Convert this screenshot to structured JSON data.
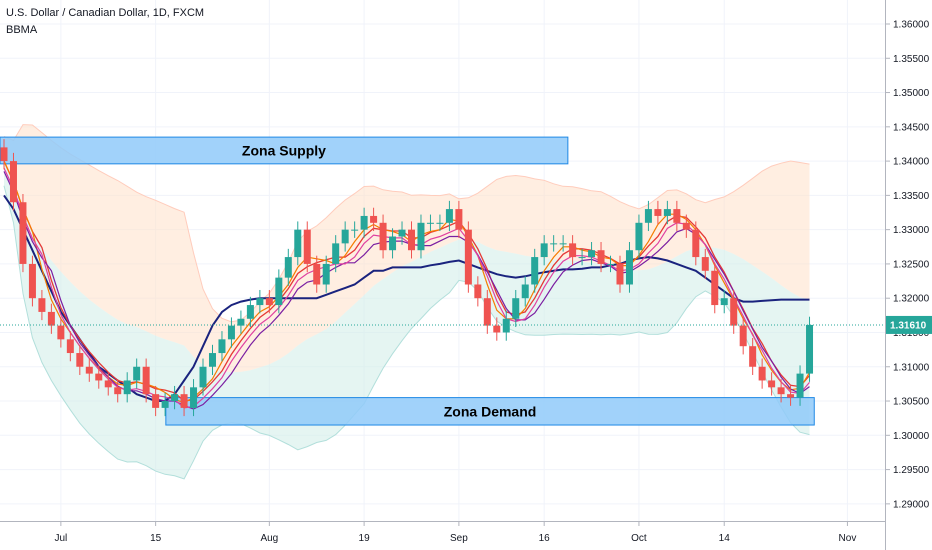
{
  "header": {
    "symbol_line": "U.S. Dollar / Canadian Dollar, 1D, FXCM",
    "indicator": "BBMA"
  },
  "colors": {
    "up": "#26a69a",
    "down": "#ef5350",
    "ma_slow": "#1a237e",
    "ma_red": "#e53935",
    "ma_orange": "#f57c00",
    "ma_purple": "#7b1fa2",
    "ma_pink": "#e040a0",
    "band_upper": "#ffe0c8",
    "band_lower": "#d4efea",
    "zone_fill": "#90caf9",
    "zone_stroke": "#1e88e5",
    "price_label": "#26a69a"
  },
  "chart_data": {
    "type": "candlestick",
    "y_axis": {
      "ticks": [
        "1.29000",
        "1.29500",
        "1.30000",
        "1.30500",
        "1.31000",
        "1.31500",
        "1.32000",
        "1.32500",
        "1.33000",
        "1.33500",
        "1.34000",
        "1.34500",
        "1.35000",
        "1.35500",
        "1.36000"
      ],
      "ylim": [
        1.2875,
        1.3635
      ]
    },
    "x_axis": {
      "ticks": [
        "Jul",
        "15",
        "Aug",
        "19",
        "Sep",
        "16",
        "Oct",
        "14",
        "Nov"
      ],
      "tick_index": [
        6,
        16,
        28,
        38,
        48,
        57,
        67,
        76,
        89
      ]
    },
    "last_price": "1.31610",
    "zones": [
      {
        "label": "Zona Supply",
        "top": 1.3435,
        "bottom": 1.3396,
        "start": 0,
        "end": 59.5
      },
      {
        "label": "Zona Demand",
        "top": 1.3055,
        "bottom": 1.3015,
        "start": 17.5,
        "end": 85.5
      }
    ],
    "closes": [
      1.34,
      1.334,
      1.325,
      1.32,
      1.318,
      1.316,
      1.314,
      1.312,
      1.31,
      1.309,
      1.308,
      1.307,
      1.306,
      1.308,
      1.31,
      1.306,
      1.304,
      1.305,
      1.306,
      1.304,
      1.307,
      1.31,
      1.312,
      1.314,
      1.316,
      1.317,
      1.319,
      1.32,
      1.319,
      1.323,
      1.326,
      1.33,
      1.325,
      1.322,
      1.325,
      1.328,
      1.33,
      1.33,
      1.332,
      1.331,
      1.327,
      1.329,
      1.33,
      1.327,
      1.331,
      1.331,
      1.331,
      1.333,
      1.33,
      1.322,
      1.32,
      1.316,
      1.315,
      1.317,
      1.32,
      1.322,
      1.326,
      1.328,
      1.328,
      1.328,
      1.326,
      1.326,
      1.327,
      1.325,
      1.325,
      1.322,
      1.327,
      1.331,
      1.333,
      1.332,
      1.333,
      1.331,
      1.33,
      1.326,
      1.324,
      1.319,
      1.32,
      1.316,
      1.313,
      1.31,
      1.308,
      1.307,
      1.306,
      1.3055,
      1.309,
      1.3161
    ],
    "opens": [
      1.342,
      1.34,
      1.334,
      1.325,
      1.32,
      1.318,
      1.316,
      1.314,
      1.312,
      1.31,
      1.309,
      1.308,
      1.307,
      1.306,
      1.308,
      1.31,
      1.306,
      1.304,
      1.305,
      1.306,
      1.304,
      1.307,
      1.31,
      1.312,
      1.314,
      1.316,
      1.317,
      1.319,
      1.32,
      1.319,
      1.323,
      1.326,
      1.33,
      1.325,
      1.322,
      1.325,
      1.328,
      1.33,
      1.33,
      1.332,
      1.331,
      1.327,
      1.329,
      1.33,
      1.327,
      1.331,
      1.331,
      1.331,
      1.333,
      1.33,
      1.322,
      1.32,
      1.316,
      1.315,
      1.317,
      1.32,
      1.322,
      1.326,
      1.328,
      1.328,
      1.328,
      1.326,
      1.326,
      1.327,
      1.325,
      1.325,
      1.322,
      1.327,
      1.331,
      1.333,
      1.332,
      1.333,
      1.331,
      1.33,
      1.326,
      1.324,
      1.319,
      1.32,
      1.316,
      1.313,
      1.31,
      1.308,
      1.307,
      1.306,
      1.3055,
      1.309
    ],
    "series": [
      {
        "values": [
          1.335,
          1.333,
          1.33,
          1.327,
          1.324,
          1.321,
          1.318,
          1.316,
          1.314,
          1.312,
          1.31,
          1.309,
          1.308,
          1.307,
          1.306,
          1.3055,
          1.305,
          1.305,
          1.306,
          1.308,
          1.31,
          1.313,
          1.316,
          1.318,
          1.319,
          1.3195,
          1.3198,
          1.32,
          1.32,
          1.32,
          1.32,
          1.32,
          1.32,
          1.32,
          1.3205,
          1.321,
          1.3215,
          1.322,
          1.323,
          1.324,
          1.324,
          1.3245,
          1.3245,
          1.3245,
          1.3245,
          1.3248,
          1.325,
          1.3253,
          1.3255,
          1.325,
          1.3245,
          1.324,
          1.3235,
          1.3232,
          1.323,
          1.3232,
          1.3235,
          1.3238,
          1.324,
          1.3242,
          1.3242,
          1.3243,
          1.3245,
          1.3245,
          1.3248,
          1.325,
          1.3255,
          1.3258,
          1.326,
          1.3258,
          1.3255,
          1.325,
          1.3245,
          1.324,
          1.323,
          1.322,
          1.321,
          1.32,
          1.3195,
          1.3195,
          1.3196,
          1.3197,
          1.3198,
          1.3198,
          1.3198,
          1.3198
        ]
      }
    ]
  }
}
